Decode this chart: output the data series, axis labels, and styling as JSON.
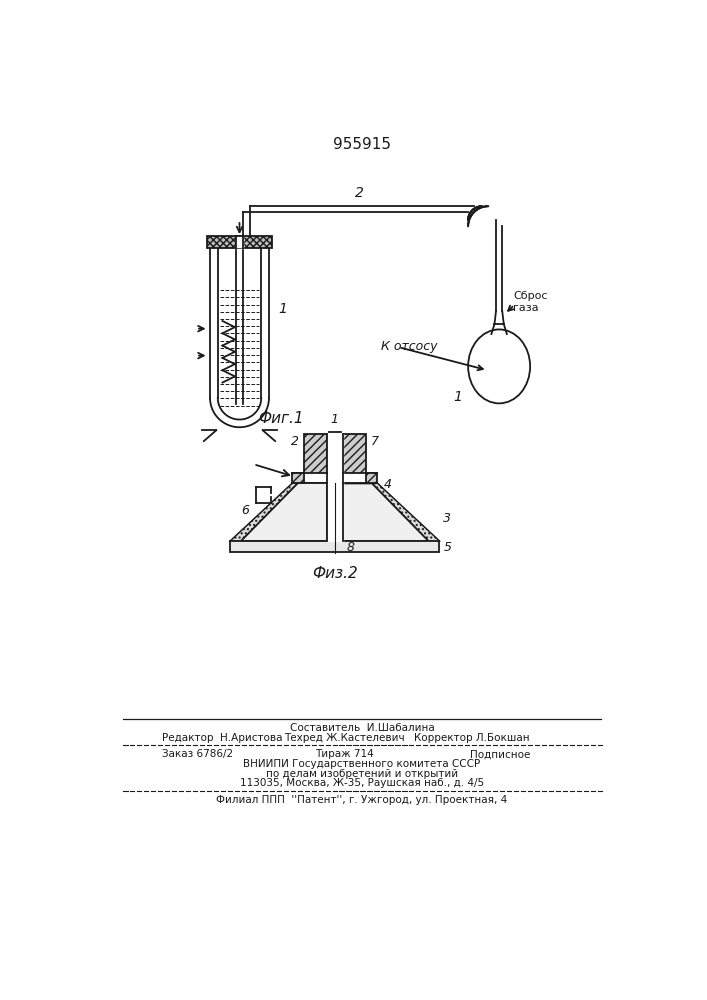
{
  "patent_number": "955915",
  "background_color": "#ffffff",
  "line_color": "#1a1a1a",
  "fig1_label": "Фиг.1",
  "fig2_label": "Физ.2",
  "label_sbros": "Сброс\nгаза",
  "label_kotsosu": "К отсосу",
  "footer_sostavitel": "Составитель  И.Шабалина",
  "footer_editor": "Редактор  Н.Аристова",
  "footer_tekhred": "Техред Ж.Кастелевич",
  "footer_korr": "Корректор Л.Бокшан",
  "footer_zakaz": "Заказ 6786/2",
  "footer_tirazh": "Тираж 714",
  "footer_podp": "Подписное",
  "footer_vniip1": "ВНИИПИ Государственного комитета СССР",
  "footer_vniip2": "по делам изобретений и открытий",
  "footer_addr": "113035, Москва, Ж-35, Раушская наб., д. 4/5",
  "footer_filial": "Филиал ППП  ''Патент'', г. Ужгород, ул. Проектная, 4"
}
